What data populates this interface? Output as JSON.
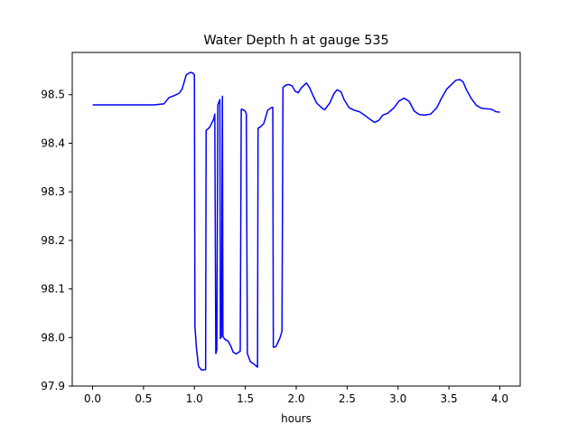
{
  "chart_data": {
    "type": "line",
    "title": "Water Depth h at gauge 535",
    "xlabel": "hours",
    "ylabel": "",
    "xlim": [
      -0.2,
      4.2
    ],
    "ylim": [
      97.9,
      98.587
    ],
    "xticks": [
      0.0,
      0.5,
      1.0,
      1.5,
      2.0,
      2.5,
      3.0,
      3.5,
      4.0
    ],
    "xtick_labels": [
      "0.0",
      "0.5",
      "1.0",
      "1.5",
      "2.0",
      "2.5",
      "3.0",
      "3.5",
      "4.0"
    ],
    "yticks": [
      97.9,
      98.0,
      98.1,
      98.2,
      98.3,
      98.4,
      98.5
    ],
    "ytick_labels": [
      "97.9",
      "98.0",
      "98.1",
      "98.2",
      "98.3",
      "98.4",
      "98.5"
    ],
    "grid": false,
    "line_color": "#0000ff",
    "series": [
      {
        "x": [
          0.0,
          0.3,
          0.6,
          0.7,
          0.75,
          0.8,
          0.85,
          0.88,
          0.92,
          0.96,
          0.99,
          1.0,
          1.005,
          1.02,
          1.04,
          1.07,
          1.11,
          1.115,
          1.15,
          1.19,
          1.2,
          1.21,
          1.22,
          1.23,
          1.25,
          1.255,
          1.265,
          1.275,
          1.28,
          1.3,
          1.33,
          1.36,
          1.38,
          1.41,
          1.45,
          1.46,
          1.47,
          1.5,
          1.51,
          1.52,
          1.55,
          1.58,
          1.62,
          1.625,
          1.65,
          1.68,
          1.72,
          1.76,
          1.77,
          1.775,
          1.8,
          1.84,
          1.86,
          1.87,
          1.9,
          1.93,
          1.96,
          1.99,
          2.02,
          2.05,
          2.1,
          2.13,
          2.17,
          2.2,
          2.25,
          2.28,
          2.33,
          2.37,
          2.4,
          2.44,
          2.47,
          2.52,
          2.57,
          2.62,
          2.67,
          2.72,
          2.77,
          2.81,
          2.85,
          2.9,
          2.96,
          3.01,
          3.06,
          3.11,
          3.16,
          3.21,
          3.26,
          3.32,
          3.38,
          3.43,
          3.48,
          3.53,
          3.57,
          3.61,
          3.64,
          3.67,
          3.72,
          3.77,
          3.82,
          3.87,
          3.92,
          3.96,
          4.0
        ],
        "y": [
          98.479,
          98.479,
          98.479,
          98.481,
          98.494,
          98.498,
          98.503,
          98.512,
          98.541,
          98.546,
          98.544,
          98.54,
          98.023,
          97.978,
          97.941,
          97.933,
          97.934,
          98.426,
          98.433,
          98.45,
          98.46,
          97.967,
          97.975,
          98.479,
          98.49,
          97.998,
          98.002,
          98.497,
          98.002,
          97.996,
          97.993,
          97.981,
          97.97,
          97.966,
          97.972,
          98.47,
          98.47,
          98.466,
          98.46,
          97.967,
          97.95,
          97.946,
          97.939,
          98.431,
          98.434,
          98.44,
          98.468,
          98.474,
          98.474,
          97.98,
          97.981,
          97.999,
          98.013,
          98.515,
          98.52,
          98.521,
          98.518,
          98.507,
          98.504,
          98.514,
          98.524,
          98.515,
          98.496,
          98.483,
          98.473,
          98.469,
          98.483,
          98.502,
          98.51,
          98.506,
          98.49,
          98.473,
          98.468,
          98.465,
          98.458,
          98.45,
          98.443,
          98.447,
          98.458,
          98.462,
          98.473,
          98.487,
          98.493,
          98.486,
          98.466,
          98.459,
          98.458,
          98.46,
          98.473,
          98.494,
          98.512,
          98.522,
          98.53,
          98.531,
          98.526,
          98.511,
          98.492,
          98.478,
          98.472,
          98.471,
          98.47,
          98.465,
          98.464
        ]
      }
    ]
  }
}
